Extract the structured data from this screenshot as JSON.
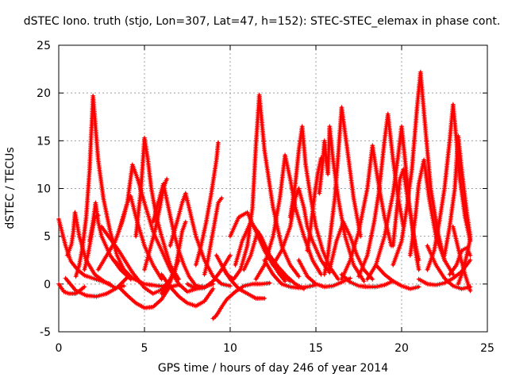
{
  "title": "dSTEC Iono. truth (stjo, Lon=307, Lat=47, h=152): STEC-STEC_elemax in phase cont.",
  "chart_data": {
    "type": "scatter",
    "title": "dSTEC Iono. truth (stjo, Lon=307, Lat=47, h=152): STEC-STEC_elemax in phase cont.",
    "xlabel": "GPS time / hours of day 246 of year 2014",
    "ylabel": "dSTEC  / TECUs",
    "xlim": [
      0,
      25
    ],
    "ylim": [
      -5,
      25
    ],
    "xticks": [
      "0",
      "5",
      "10",
      "15",
      "20",
      "25"
    ],
    "yticks": [
      "-5",
      "0",
      "5",
      "10",
      "15",
      "20",
      "25"
    ],
    "grid": true,
    "marker": "+",
    "color": "#ff0000",
    "series": [
      {
        "x": [
          0.0,
          0.3,
          0.6,
          1.0,
          1.5
        ],
        "y": [
          0.0,
          -0.8,
          -1.0,
          -1.0,
          -0.3
        ]
      },
      {
        "x": [
          0.0,
          0.4,
          0.7,
          1.1,
          1.5,
          2.0,
          2.5,
          3.0
        ],
        "y": [
          6.8,
          4.0,
          2.4,
          1.5,
          0.9,
          0.6,
          0.3,
          0.0
        ]
      },
      {
        "x": [
          0.4,
          1.0,
          1.6,
          2.2,
          2.8,
          3.4,
          4.0
        ],
        "y": [
          0.6,
          -0.7,
          -1.2,
          -1.3,
          -1.0,
          -0.4,
          0.7
        ]
      },
      {
        "x": [
          0.5,
          0.75,
          0.85,
          0.95,
          1.2,
          1.6,
          2.1,
          2.7,
          3.3,
          3.8
        ],
        "y": [
          3.0,
          4.2,
          5.5,
          7.5,
          5.0,
          2.5,
          1.0,
          0.2,
          -0.4,
          -0.2
        ]
      },
      {
        "x": [
          1.0,
          1.2,
          1.4,
          1.6,
          1.8,
          2.0,
          2.3,
          2.6,
          3.0,
          3.4,
          3.8
        ],
        "y": [
          0.8,
          2.0,
          4.0,
          7.0,
          12.0,
          19.7,
          13.0,
          9.0,
          5.5,
          3.0,
          1.5
        ]
      },
      {
        "x": [
          1.5,
          1.7,
          1.9,
          2.1,
          2.3
        ],
        "y": [
          1.5,
          3.0,
          5.0,
          7.0,
          7.2
        ]
      },
      {
        "x": [
          1.8,
          2.0,
          2.15,
          2.3,
          2.5,
          3.0,
          3.6,
          4.2
        ],
        "y": [
          4.5,
          6.5,
          8.5,
          6.5,
          5.0,
          3.0,
          1.5,
          0.5
        ]
      },
      {
        "x": [
          2.3,
          2.8,
          3.3,
          3.7,
          4.0,
          4.2,
          4.5,
          5.0,
          5.5,
          6.0
        ],
        "y": [
          1.5,
          3.0,
          4.5,
          6.5,
          8.5,
          9.2,
          7.0,
          4.0,
          2.0,
          0.5
        ]
      },
      {
        "x": [
          3.2,
          3.8,
          4.3,
          5.0,
          5.8,
          6.5,
          7.0
        ],
        "y": [
          2.5,
          1.5,
          0.6,
          0.0,
          -0.2,
          -0.3,
          -0.1
        ]
      },
      {
        "x": [
          3.5,
          4.0,
          4.3,
          4.6,
          5.0,
          5.5,
          6.0,
          6.5,
          7.0,
          7.5,
          8.0
        ],
        "y": [
          5.5,
          8.5,
          12.5,
          11.0,
          8.5,
          5.5,
          3.5,
          1.5,
          0.0,
          -0.8,
          -0.5
        ]
      },
      {
        "x": [
          2.5,
          3.5,
          4.3,
          5.0,
          5.5,
          6.0,
          6.5,
          7.0
        ],
        "y": [
          6.0,
          3.5,
          1.2,
          -0.4,
          -1.0,
          -0.6,
          0.5,
          2.5
        ]
      },
      {
        "x": [
          4.5,
          4.8,
          5.0,
          5.2,
          5.4,
          5.7,
          6.0,
          6.5,
          7.0
        ],
        "y": [
          5.0,
          10.0,
          15.3,
          13.0,
          10.0,
          7.0,
          5.0,
          2.0,
          0.5
        ]
      },
      {
        "x": [
          3.5,
          4.0,
          4.5,
          5.0,
          5.5,
          6.0,
          6.5
        ],
        "y": [
          -0.3,
          -1.2,
          -2.0,
          -2.5,
          -2.4,
          -1.6,
          -0.2
        ]
      },
      {
        "x": [
          5.0,
          5.3,
          5.6,
          5.9,
          6.1,
          6.3
        ],
        "y": [
          1.5,
          3.5,
          5.5,
          8.0,
          10.0,
          11.0
        ]
      },
      {
        "x": [
          5.5,
          5.8,
          6.1,
          6.4,
          6.7,
          7.0,
          7.3,
          7.6,
          8.0,
          8.5,
          9.0
        ],
        "y": [
          6.5,
          8.5,
          10.5,
          8.0,
          5.5,
          3.5,
          2.0,
          0.8,
          -0.2,
          -0.3,
          0.0
        ]
      },
      {
        "x": [
          6.0,
          6.5,
          7.0,
          7.5,
          8.0,
          8.5,
          9.0
        ],
        "y": [
          1.0,
          -0.3,
          -1.3,
          -2.0,
          -2.3,
          -1.8,
          -0.5
        ]
      },
      {
        "x": [
          6.5,
          6.9,
          7.2,
          7.4,
          7.6,
          8.0,
          8.5,
          9.0,
          9.5,
          10.0
        ],
        "y": [
          4.0,
          6.5,
          8.5,
          9.5,
          8.0,
          5.0,
          2.5,
          0.8,
          0.0,
          -0.2
        ]
      },
      {
        "x": [
          6.0,
          6.4,
          6.8,
          7.0,
          7.2,
          7.4
        ],
        "y": [
          -1.0,
          -0.2,
          1.5,
          3.5,
          5.5,
          6.5
        ]
      },
      {
        "x": [
          8.0,
          8.3,
          8.6,
          8.9,
          9.2,
          9.3
        ],
        "y": [
          2.0,
          4.0,
          6.5,
          9.5,
          13.0,
          14.8
        ]
      },
      {
        "x": [
          8.5,
          8.7,
          8.9,
          9.1,
          9.3,
          9.5
        ],
        "y": [
          1.0,
          2.5,
          4.5,
          6.5,
          8.5,
          9.0
        ]
      },
      {
        "x": [
          7.5,
          8.0,
          8.5,
          9.0,
          9.5,
          10.0
        ],
        "y": [
          0.0,
          -0.5,
          -0.4,
          0.3,
          1.5,
          3.0
        ]
      },
      {
        "x": [
          9.0,
          9.15,
          9.3,
          9.5,
          9.8,
          10.3,
          10.8,
          11.3,
          11.8,
          12.3
        ],
        "y": [
          -3.6,
          -3.4,
          -3.0,
          -2.4,
          -1.6,
          -0.8,
          -0.2,
          0.0,
          0.0,
          0.1
        ]
      },
      {
        "x": [
          9.2,
          9.5,
          9.8,
          10.2,
          10.6,
          11.0,
          11.3,
          11.5,
          11.7,
          12.0,
          12.5,
          13.0,
          13.5,
          14.0
        ],
        "y": [
          3.0,
          2.0,
          1.0,
          0.5,
          1.5,
          4.0,
          8.0,
          14.5,
          19.8,
          14.0,
          8.0,
          4.0,
          2.0,
          0.8
        ]
      },
      {
        "x": [
          9.5,
          10.0,
          10.5,
          11.0,
          11.5,
          12.0
        ],
        "y": [
          2.0,
          0.5,
          -0.5,
          -1.0,
          -1.5,
          -1.5
        ]
      },
      {
        "x": [
          10.0,
          10.5,
          11.0,
          11.5,
          12.0,
          12.5,
          13.0,
          13.5
        ],
        "y": [
          5.0,
          7.0,
          7.5,
          5.5,
          3.5,
          2.0,
          1.0,
          0.3
        ]
      },
      {
        "x": [
          10.3,
          10.7,
          11.2,
          11.8,
          12.3,
          12.8,
          13.3,
          13.8,
          14.3
        ],
        "y": [
          2.0,
          4.5,
          6.5,
          5.0,
          3.0,
          1.8,
          0.8,
          0.0,
          -0.5
        ]
      },
      {
        "x": [
          10.8,
          11.2,
          11.6,
          12.0,
          12.4,
          12.8,
          13.2
        ],
        "y": [
          1.5,
          3.0,
          5.5,
          4.0,
          2.5,
          1.2,
          0.3
        ]
      },
      {
        "x": [
          11.5,
          12.0,
          12.5,
          12.9,
          13.2,
          13.5,
          13.8,
          14.3,
          14.8,
          15.3
        ],
        "y": [
          0.5,
          2.0,
          5.0,
          9.0,
          13.5,
          11.0,
          8.0,
          5.0,
          2.5,
          1.0
        ]
      },
      {
        "x": [
          12.5,
          13.0,
          13.5,
          13.8,
          14.0,
          14.3,
          14.5,
          14.8,
          15.3,
          15.8
        ],
        "y": [
          2.0,
          3.5,
          6.0,
          9.0,
          10.0,
          8.0,
          6.0,
          4.5,
          2.5,
          1.2
        ]
      },
      {
        "x": [
          12.0,
          12.5,
          13.0,
          13.5,
          14.0,
          14.5,
          15.0
        ],
        "y": [
          2.5,
          1.0,
          0.0,
          -0.3,
          -0.4,
          -0.3,
          -0.1
        ]
      },
      {
        "x": [
          13.5,
          13.8,
          14.0,
          14.2,
          14.4,
          14.7,
          15.0,
          15.4,
          15.8,
          16.3
        ],
        "y": [
          7.0,
          10.5,
          14.0,
          16.5,
          12.5,
          9.0,
          6.0,
          3.5,
          1.8,
          0.5
        ]
      },
      {
        "x": [
          14.5,
          14.7,
          14.9,
          15.1,
          15.3
        ],
        "y": [
          3.5,
          6.0,
          9.0,
          11.5,
          13.2
        ]
      },
      {
        "x": [
          14.0,
          14.5,
          15.0,
          15.5,
          16.0,
          16.5,
          17.0
        ],
        "y": [
          2.5,
          0.8,
          0.0,
          -0.3,
          -0.2,
          0.2,
          0.6
        ]
      },
      {
        "x": [
          15.2,
          15.35,
          15.5,
          15.6,
          15.7,
          15.8,
          16.0,
          16.3,
          16.7,
          17.2,
          17.8
        ],
        "y": [
          9.5,
          12.0,
          15.0,
          13.0,
          11.5,
          16.5,
          13.0,
          9.0,
          5.0,
          2.0,
          0.3
        ]
      },
      {
        "x": [
          15.5,
          15.7,
          15.9,
          16.1,
          16.3,
          16.5,
          16.8,
          17.2,
          17.6
        ],
        "y": [
          1.0,
          3.0,
          6.0,
          9.0,
          13.5,
          18.5,
          14.5,
          9.0,
          5.0
        ]
      },
      {
        "x": [
          15.8,
          16.2,
          16.6,
          17.0,
          17.4,
          17.8,
          18.3
        ],
        "y": [
          1.5,
          4.5,
          6.5,
          5.0,
          3.0,
          1.5,
          0.5
        ]
      },
      {
        "x": [
          16.5,
          17.0,
          17.5,
          18.0,
          18.3,
          18.6,
          19.0,
          19.4
        ],
        "y": [
          0.5,
          2.5,
          5.5,
          10.0,
          14.5,
          11.0,
          7.0,
          4.0
        ]
      },
      {
        "x": [
          16.5,
          17.0,
          17.5,
          18.0,
          18.5,
          19.0,
          19.5
        ],
        "y": [
          1.0,
          0.2,
          -0.2,
          -0.3,
          -0.3,
          -0.1,
          0.3
        ]
      },
      {
        "x": [
          17.5,
          18.0,
          18.4,
          18.7,
          19.0,
          19.2,
          19.5,
          19.8,
          20.1
        ],
        "y": [
          0.8,
          3.0,
          6.5,
          10.0,
          15.0,
          17.8,
          13.0,
          9.0,
          6.0
        ]
      },
      {
        "x": [
          18.0,
          18.5,
          19.0,
          19.5,
          19.8,
          20.0,
          20.2,
          20.4,
          20.7,
          21.0
        ],
        "y": [
          0.5,
          2.0,
          5.0,
          9.5,
          13.5,
          16.5,
          13.0,
          9.0,
          5.0,
          2.5
        ]
      },
      {
        "x": [
          19.5,
          19.7,
          19.9,
          20.1,
          20.3,
          20.6,
          20.8,
          21.0
        ],
        "y": [
          4.0,
          7.5,
          11.0,
          12.0,
          9.5,
          6.5,
          3.5,
          1.5
        ]
      },
      {
        "x": [
          18.5,
          19.0,
          19.5,
          20.0,
          20.5,
          21.0
        ],
        "y": [
          2.0,
          1.0,
          0.3,
          -0.2,
          -0.5,
          -0.3
        ]
      },
      {
        "x": [
          19.5,
          20.0,
          20.3,
          20.6,
          20.9,
          21.1,
          21.4,
          21.7,
          22.1,
          22.5
        ],
        "y": [
          2.0,
          4.5,
          8.0,
          12.0,
          18.5,
          22.2,
          16.0,
          10.0,
          5.5,
          2.5
        ]
      },
      {
        "x": [
          20.5,
          20.8,
          21.0,
          21.3,
          21.6,
          22.0,
          22.5,
          23.0
        ],
        "y": [
          3.0,
          7.0,
          10.5,
          13.0,
          9.0,
          5.0,
          2.5,
          1.0
        ]
      },
      {
        "x": [
          21.0,
          21.5,
          22.0,
          22.5,
          23.0,
          23.5,
          24.0
        ],
        "y": [
          0.5,
          0.0,
          -0.1,
          0.1,
          0.6,
          1.3,
          2.5
        ]
      },
      {
        "x": [
          21.5,
          21.9,
          22.2,
          22.5,
          22.8,
          23.0,
          23.2,
          23.4,
          23.7,
          24.0
        ],
        "y": [
          1.5,
          3.5,
          6.5,
          10.0,
          15.0,
          18.8,
          15.0,
          11.0,
          7.0,
          4.5
        ]
      },
      {
        "x": [
          22.5,
          22.8,
          23.1,
          23.3,
          23.5,
          23.8,
          24.0
        ],
        "y": [
          3.0,
          6.0,
          10.0,
          15.5,
          12.0,
          7.5,
          5.0
        ]
      },
      {
        "x": [
          21.5,
          22.0,
          22.5,
          23.0,
          23.5,
          24.0
        ],
        "y": [
          4.0,
          2.0,
          0.6,
          -0.2,
          -0.5,
          -0.3
        ]
      },
      {
        "x": [
          22.8,
          23.2,
          23.5,
          23.8,
          24.0
        ],
        "y": [
          1.0,
          2.0,
          3.5,
          3.8,
          3.0
        ]
      },
      {
        "x": [
          23.0,
          23.4,
          23.7,
          24.0
        ],
        "y": [
          6.0,
          3.0,
          1.0,
          -0.7
        ]
      },
      {
        "x": [
          23.3,
          23.6,
          23.9,
          24.0
        ],
        "y": [
          0.0,
          1.5,
          3.8,
          4.8
        ]
      }
    ]
  }
}
